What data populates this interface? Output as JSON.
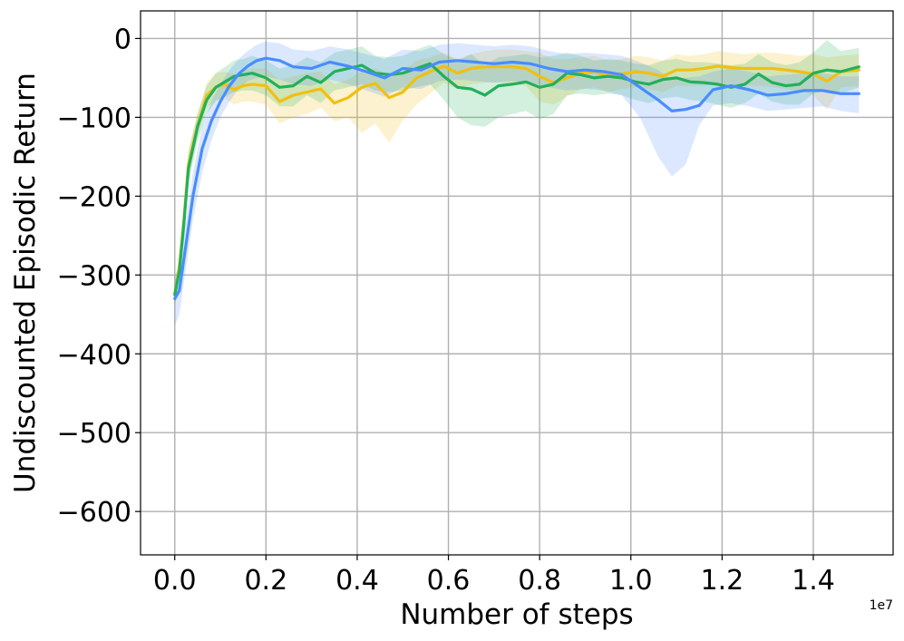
{
  "chart_data": {
    "type": "line",
    "title": "",
    "xlabel": "Number of steps",
    "ylabel": "Undiscounted Episodic Return",
    "x_offset_label": "1e7",
    "xlim": [
      -0.075,
      1.575
    ],
    "ylim": [
      -655,
      35
    ],
    "x_unit_scale": 10000000,
    "xticks": [
      0.0,
      0.2,
      0.4,
      0.6,
      0.8,
      1.0,
      1.2,
      1.4
    ],
    "xtick_labels": [
      "0.0",
      "0.2",
      "0.4",
      "0.6",
      "0.8",
      "1.0",
      "1.2",
      "1.4"
    ],
    "yticks": [
      0,
      -100,
      -200,
      -300,
      -400,
      -500,
      -600
    ],
    "ytick_labels": [
      "0",
      "−100",
      "−200",
      "−300",
      "−400",
      "−500",
      "−600"
    ],
    "grid": true,
    "legend": "none",
    "series": [
      {
        "color": "#f0c010",
        "x": [
          0.0,
          0.01,
          0.02,
          0.03,
          0.05,
          0.07,
          0.09,
          0.11,
          0.13,
          0.15,
          0.17,
          0.2,
          0.23,
          0.26,
          0.29,
          0.32,
          0.35,
          0.38,
          0.41,
          0.44,
          0.47,
          0.5,
          0.53,
          0.56,
          0.59,
          0.62,
          0.65,
          0.68,
          0.71,
          0.74,
          0.77,
          0.8,
          0.83,
          0.86,
          0.89,
          0.92,
          0.95,
          0.98,
          1.01,
          1.04,
          1.07,
          1.1,
          1.13,
          1.16,
          1.19,
          1.22,
          1.25,
          1.28,
          1.31,
          1.34,
          1.37,
          1.4,
          1.43,
          1.46,
          1.5
        ],
        "y": [
          -325,
          -290,
          -230,
          -160,
          -110,
          -72,
          -62,
          -58,
          -65,
          -60,
          -58,
          -60,
          -80,
          -72,
          -68,
          -64,
          -82,
          -75,
          -62,
          -57,
          -75,
          -68,
          -50,
          -42,
          -35,
          -44,
          -38,
          -36,
          -36,
          -36,
          -38,
          -48,
          -56,
          -50,
          -44,
          -42,
          -48,
          -45,
          -42,
          -44,
          -48,
          -40,
          -40,
          -38,
          -35,
          -37,
          -38,
          -38,
          -38,
          -40,
          -42,
          -45,
          -54,
          -42,
          -40
        ],
        "lower": [
          -340,
          -305,
          -250,
          -180,
          -125,
          -88,
          -78,
          -76,
          -84,
          -80,
          -80,
          -84,
          -108,
          -100,
          -96,
          -88,
          -105,
          -100,
          -120,
          -108,
          -132,
          -104,
          -84,
          -70,
          -56,
          -64,
          -58,
          -56,
          -56,
          -58,
          -60,
          -80,
          -84,
          -74,
          -64,
          -62,
          -68,
          -64,
          -62,
          -64,
          -68,
          -60,
          -60,
          -60,
          -58,
          -58,
          -60,
          -60,
          -62,
          -64,
          -66,
          -72,
          -90,
          -62,
          -60
        ],
        "upper": [
          -310,
          -275,
          -210,
          -140,
          -95,
          -56,
          -44,
          -42,
          -46,
          -40,
          -38,
          -38,
          -52,
          -48,
          -44,
          -42,
          -58,
          -52,
          -42,
          -38,
          -46,
          -42,
          -28,
          -24,
          -18,
          -26,
          -20,
          -16,
          -14,
          -14,
          -16,
          -18,
          -26,
          -26,
          -24,
          -22,
          -28,
          -26,
          -22,
          -24,
          -28,
          -20,
          -22,
          -20,
          -16,
          -18,
          -20,
          -18,
          -18,
          -20,
          -22,
          -20,
          -24,
          -22,
          -20
        ]
      },
      {
        "color": "#22b05a",
        "x": [
          0.0,
          0.01,
          0.02,
          0.03,
          0.05,
          0.07,
          0.09,
          0.11,
          0.13,
          0.15,
          0.17,
          0.2,
          0.23,
          0.26,
          0.29,
          0.32,
          0.35,
          0.38,
          0.41,
          0.44,
          0.47,
          0.5,
          0.53,
          0.56,
          0.59,
          0.62,
          0.65,
          0.68,
          0.71,
          0.74,
          0.77,
          0.8,
          0.83,
          0.86,
          0.89,
          0.92,
          0.95,
          0.98,
          1.01,
          1.04,
          1.07,
          1.1,
          1.13,
          1.16,
          1.19,
          1.22,
          1.25,
          1.28,
          1.31,
          1.34,
          1.37,
          1.4,
          1.43,
          1.46,
          1.5
        ],
        "y": [
          -325,
          -295,
          -235,
          -165,
          -112,
          -78,
          -62,
          -55,
          -48,
          -46,
          -44,
          -50,
          -62,
          -60,
          -48,
          -56,
          -42,
          -38,
          -34,
          -44,
          -46,
          -44,
          -38,
          -32,
          -48,
          -62,
          -64,
          -72,
          -60,
          -58,
          -55,
          -62,
          -58,
          -44,
          -46,
          -50,
          -48,
          -50,
          -55,
          -58,
          -52,
          -50,
          -55,
          -56,
          -58,
          -62,
          -58,
          -45,
          -56,
          -60,
          -58,
          -44,
          -40,
          -42,
          -36
        ],
        "lower": [
          -340,
          -310,
          -255,
          -185,
          -130,
          -96,
          -80,
          -74,
          -68,
          -66,
          -66,
          -72,
          -86,
          -86,
          -72,
          -82,
          -66,
          -62,
          -58,
          -66,
          -68,
          -66,
          -62,
          -58,
          -78,
          -100,
          -110,
          -112,
          -100,
          -96,
          -92,
          -102,
          -96,
          -72,
          -70,
          -72,
          -70,
          -72,
          -78,
          -82,
          -76,
          -74,
          -78,
          -80,
          -84,
          -88,
          -82,
          -70,
          -80,
          -84,
          -84,
          -70,
          -66,
          -70,
          -62
        ],
        "upper": [
          -310,
          -280,
          -215,
          -145,
          -95,
          -60,
          -44,
          -36,
          -28,
          -26,
          -22,
          -28,
          -38,
          -34,
          -24,
          -30,
          -18,
          -14,
          -10,
          -22,
          -24,
          -22,
          -14,
          -8,
          -20,
          -28,
          -20,
          -34,
          -24,
          -22,
          -20,
          -24,
          -22,
          -18,
          -22,
          -28,
          -26,
          -28,
          -32,
          -34,
          -28,
          -26,
          -30,
          -30,
          -32,
          -34,
          -32,
          -20,
          -30,
          -34,
          -30,
          -18,
          -2,
          -16,
          -12
        ]
      },
      {
        "color": "#4a8cff",
        "x": [
          0.0,
          0.01,
          0.02,
          0.04,
          0.06,
          0.08,
          0.1,
          0.12,
          0.14,
          0.16,
          0.18,
          0.2,
          0.23,
          0.26,
          0.3,
          0.34,
          0.38,
          0.42,
          0.46,
          0.5,
          0.54,
          0.58,
          0.62,
          0.66,
          0.7,
          0.74,
          0.78,
          0.82,
          0.86,
          0.9,
          0.94,
          0.98,
          1.02,
          1.06,
          1.09,
          1.12,
          1.15,
          1.18,
          1.22,
          1.26,
          1.3,
          1.34,
          1.38,
          1.42,
          1.46,
          1.5
        ],
        "y": [
          -330,
          -320,
          -280,
          -200,
          -140,
          -105,
          -80,
          -60,
          -45,
          -35,
          -28,
          -25,
          -28,
          -36,
          -38,
          -30,
          -35,
          -42,
          -50,
          -38,
          -40,
          -30,
          -28,
          -30,
          -32,
          -30,
          -32,
          -38,
          -42,
          -40,
          -42,
          -46,
          -62,
          -78,
          -92,
          -90,
          -85,
          -65,
          -60,
          -65,
          -72,
          -70,
          -66,
          -66,
          -70,
          -70
        ],
        "lower": [
          -365,
          -350,
          -310,
          -230,
          -170,
          -130,
          -100,
          -80,
          -64,
          -54,
          -50,
          -48,
          -52,
          -58,
          -60,
          -52,
          -58,
          -66,
          -74,
          -62,
          -64,
          -54,
          -52,
          -54,
          -56,
          -54,
          -56,
          -62,
          -66,
          -64,
          -66,
          -72,
          -100,
          -150,
          -175,
          -160,
          -110,
          -85,
          -82,
          -86,
          -92,
          -90,
          -88,
          -86,
          -92,
          -95
        ],
        "upper": [
          -300,
          -290,
          -250,
          -170,
          -112,
          -80,
          -58,
          -40,
          -26,
          -16,
          -8,
          -4,
          -6,
          -14,
          -16,
          -10,
          -14,
          -20,
          -26,
          -14,
          -16,
          -8,
          -6,
          -8,
          -10,
          -8,
          -10,
          -16,
          -20,
          -18,
          -20,
          -22,
          -30,
          -40,
          -52,
          -50,
          -48,
          -42,
          -38,
          -42,
          -48,
          -46,
          -44,
          -44,
          -48,
          -48
        ]
      }
    ]
  }
}
